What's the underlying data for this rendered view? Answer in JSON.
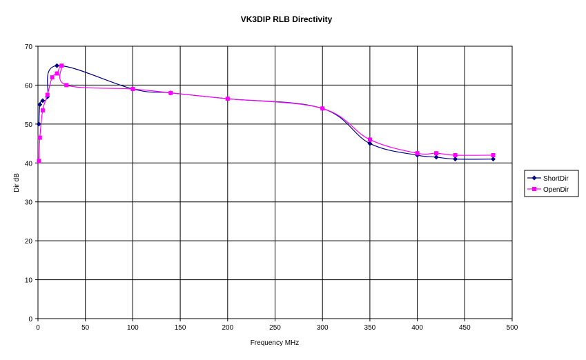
{
  "chart_data": {
    "type": "line",
    "title": "VK3DIP RLB Directivity",
    "xlabel": "Frequency MHz",
    "ylabel": "Dir dB",
    "xlim": [
      0,
      500
    ],
    "ylim": [
      0,
      70
    ],
    "xticks": [
      0,
      50,
      100,
      150,
      200,
      250,
      300,
      350,
      400,
      450,
      500
    ],
    "yticks": [
      0,
      10,
      20,
      30,
      40,
      50,
      60,
      70
    ],
    "grid": true,
    "legend_position": "right",
    "series": [
      {
        "name": "ShortDir",
        "color": "#000080",
        "marker": "diamond",
        "x": [
          1,
          2,
          5,
          10,
          20,
          100,
          140,
          200,
          300,
          350,
          400,
          420,
          440,
          480
        ],
        "y": [
          50,
          55,
          56,
          57,
          65,
          59,
          58,
          56.5,
          54,
          45,
          42,
          41.5,
          41,
          41
        ]
      },
      {
        "name": "OpenDir",
        "color": "#FF00FF",
        "marker": "square",
        "x": [
          1,
          2,
          5,
          10,
          15,
          20,
          25,
          30,
          100,
          140,
          200,
          300,
          350,
          400,
          420,
          440,
          480
        ],
        "y": [
          40.5,
          46.5,
          53.5,
          57.5,
          62,
          63,
          65,
          60,
          59,
          58,
          56.5,
          54,
          46,
          42.5,
          42.5,
          42,
          42
        ]
      }
    ]
  }
}
